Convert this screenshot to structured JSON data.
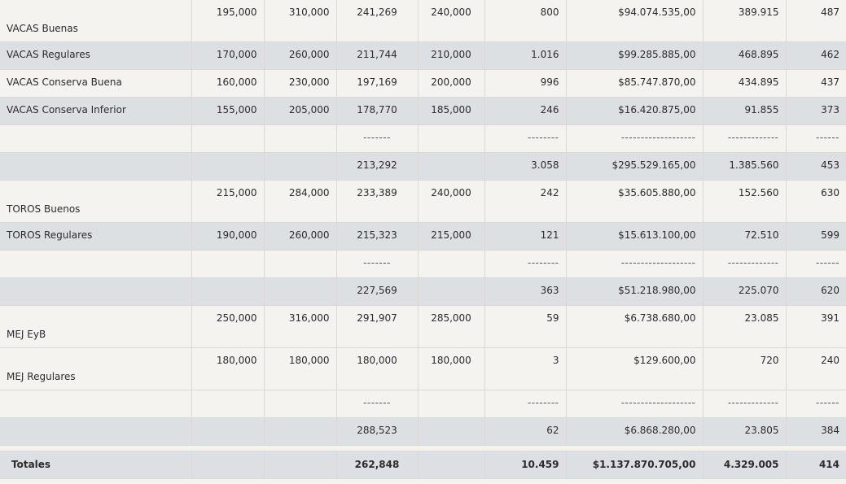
{
  "rows": [
    {
      "type": "data",
      "label": "VACAS Buenas",
      "c": [
        "195,000",
        "310,000",
        "241,269",
        "240,000",
        "800",
        "$94.074.535,00",
        "389.915",
        "487"
      ]
    },
    {
      "type": "data",
      "label": "VACAS Regulares",
      "c": [
        "170,000",
        "260,000",
        "211,744",
        "210,000",
        "1.016",
        "$99.285.885,00",
        "468.895",
        "462"
      ]
    },
    {
      "type": "data",
      "label": "VACAS Conserva Buena",
      "c": [
        "160,000",
        "230,000",
        "197,169",
        "200,000",
        "996",
        "$85.747.870,00",
        "434.895",
        "437"
      ]
    },
    {
      "type": "data",
      "label": "VACAS Conserva Inferior",
      "c": [
        "155,000",
        "205,000",
        "178,770",
        "185,000",
        "246",
        "$16.420.875,00",
        "91.855",
        "373"
      ]
    },
    {
      "type": "sep",
      "label": "",
      "c": [
        "",
        "",
        "-------",
        "",
        "--------",
        "-------------------",
        "-------------",
        "------"
      ]
    },
    {
      "type": "sub",
      "label": "",
      "c": [
        "",
        "",
        "213,292",
        "",
        "3.058",
        "$295.529.165,00",
        "1.385.560",
        "453"
      ]
    },
    {
      "type": "data",
      "label": "TOROS Buenos",
      "c": [
        "215,000",
        "284,000",
        "233,389",
        "240,000",
        "242",
        "$35.605.880,00",
        "152.560",
        "630"
      ]
    },
    {
      "type": "data",
      "label": "TOROS Regulares",
      "c": [
        "190,000",
        "260,000",
        "215,323",
        "215,000",
        "121",
        "$15.613.100,00",
        "72.510",
        "599"
      ]
    },
    {
      "type": "sep",
      "label": "",
      "c": [
        "",
        "",
        "-------",
        "",
        "--------",
        "-------------------",
        "-------------",
        "------"
      ]
    },
    {
      "type": "sub",
      "label": "",
      "c": [
        "",
        "",
        "227,569",
        "",
        "363",
        "$51.218.980,00",
        "225.070",
        "620"
      ]
    },
    {
      "type": "data",
      "label": "MEJ EyB",
      "c": [
        "250,000",
        "316,000",
        "291,907",
        "285,000",
        "59",
        "$6.738.680,00",
        "23.085",
        "391"
      ]
    },
    {
      "type": "data",
      "label": "MEJ Regulares",
      "c": [
        "180,000",
        "180,000",
        "180,000",
        "180,000",
        "3",
        "$129.600,00",
        "720",
        "240"
      ]
    },
    {
      "type": "sep",
      "label": "",
      "c": [
        "",
        "",
        "-------",
        "",
        "--------",
        "-------------------",
        "-------------",
        "------"
      ]
    },
    {
      "type": "sub",
      "label": "",
      "c": [
        "",
        "",
        "288,523",
        "",
        "62",
        "$6.868.280,00",
        "23.805",
        "384"
      ]
    }
  ],
  "totals": {
    "label": "Totales",
    "c": [
      "",
      "",
      "262,848",
      "",
      "10.459",
      "$1.137.870.705,00",
      "4.329.005",
      "414"
    ]
  }
}
